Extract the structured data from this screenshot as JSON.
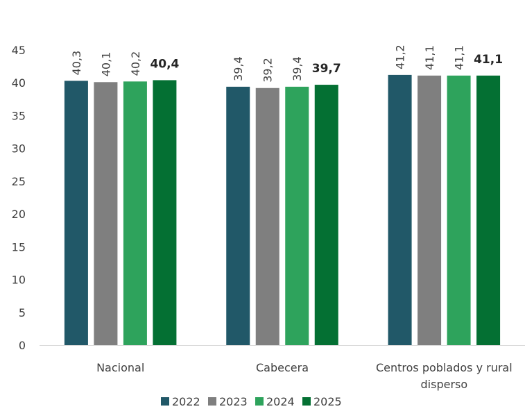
{
  "chart_data": {
    "type": "bar",
    "categories": [
      [
        "Nacional"
      ],
      [
        "Cabecera"
      ],
      [
        "Centros poblados y rural",
        "disperso"
      ]
    ],
    "series": [
      {
        "name": "2022",
        "color": "#215868",
        "values": [
          40.3,
          39.4,
          41.2
        ],
        "labels": [
          "40,3",
          "39,4",
          "41,2"
        ]
      },
      {
        "name": "2023",
        "color": "#7f7f7f",
        "values": [
          40.1,
          39.2,
          41.1
        ],
        "labels": [
          "40,1",
          "39,2",
          "41,1"
        ]
      },
      {
        "name": "2024",
        "color": "#2ea35c",
        "values": [
          40.2,
          39.4,
          41.1
        ],
        "labels": [
          "40,2",
          "39,4",
          "41,1"
        ]
      },
      {
        "name": "2025",
        "color": "#047033",
        "values": [
          40.4,
          39.7,
          41.1
        ],
        "labels": [
          "40,4",
          "39,7",
          "41,1"
        ],
        "bold_labels": true
      }
    ],
    "yticks": [
      "0",
      "5",
      "10",
      "15",
      "20",
      "25",
      "30",
      "35",
      "40",
      "45"
    ],
    "ylim": [
      0,
      45
    ],
    "grid": false,
    "legend_position": "bottom",
    "title": "",
    "xlabel": "",
    "ylabel": ""
  }
}
